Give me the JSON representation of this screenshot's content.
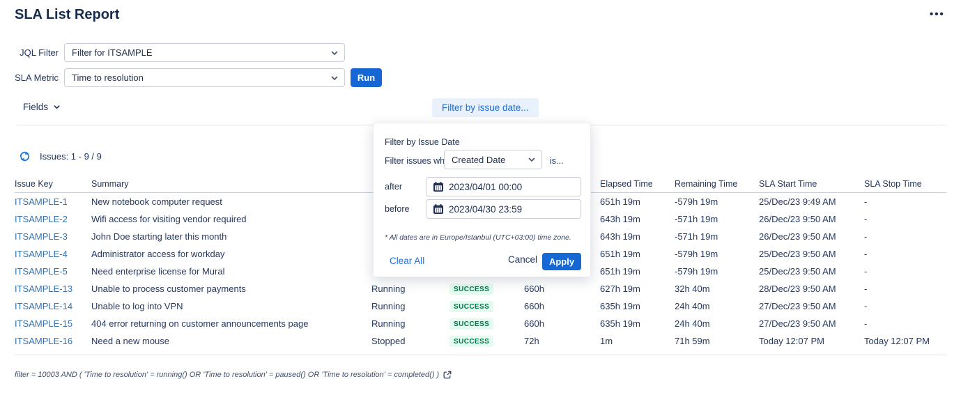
{
  "page": {
    "title": "SLA List Report",
    "menu_icon": "more-options"
  },
  "form": {
    "jql_filter": {
      "label": "JQL Filter",
      "value": "Filter for ITSAMPLE"
    },
    "sla_metric": {
      "label": "SLA Metric",
      "value": "Time to resolution"
    },
    "run_label": "Run",
    "fields_label": "Fields",
    "filter_by_issue_date_label": "Filter by issue date..."
  },
  "issues_bar": {
    "text": "Issues: 1 - 9 / 9"
  },
  "table": {
    "columns": [
      {
        "key": "issue_key",
        "label": "Issue Key"
      },
      {
        "key": "summary",
        "label": "Summary"
      },
      {
        "key": "sla_status",
        "label": ""
      },
      {
        "key": "goal_status",
        "label": ""
      },
      {
        "key": "goal_duration",
        "label": ""
      },
      {
        "key": "elapsed",
        "label": "Elapsed Time"
      },
      {
        "key": "remaining",
        "label": "Remaining Time"
      },
      {
        "key": "start",
        "label": "SLA Start Time"
      },
      {
        "key": "stop",
        "label": "SLA Stop Time"
      }
    ],
    "rows": [
      {
        "issue_key": "ITSAMPLE-1",
        "summary": "New notebook computer request",
        "sla_status": "",
        "goal_status": "",
        "goal_duration": "",
        "elapsed": "651h 19m",
        "remaining": "-579h 19m",
        "start": "25/Dec/23 9:49 AM",
        "stop": "-"
      },
      {
        "issue_key": "ITSAMPLE-2",
        "summary": "Wifi access for visiting vendor required",
        "sla_status": "",
        "goal_status": "",
        "goal_duration": "",
        "elapsed": "643h 19m",
        "remaining": "-571h 19m",
        "start": "26/Dec/23 9:50 AM",
        "stop": "-"
      },
      {
        "issue_key": "ITSAMPLE-3",
        "summary": "John Doe starting later this month",
        "sla_status": "",
        "goal_status": "",
        "goal_duration": "",
        "elapsed": "643h 19m",
        "remaining": "-571h 19m",
        "start": "26/Dec/23 9:50 AM",
        "stop": "-"
      },
      {
        "issue_key": "ITSAMPLE-4",
        "summary": "Administrator access for workday",
        "sla_status": "",
        "goal_status": "",
        "goal_duration": "",
        "elapsed": "651h 19m",
        "remaining": "-579h 19m",
        "start": "25/Dec/23 9:50 AM",
        "stop": "-"
      },
      {
        "issue_key": "ITSAMPLE-5",
        "summary": "Need enterprise license for Mural",
        "sla_status": "",
        "goal_status": "",
        "goal_duration": "",
        "elapsed": "651h 19m",
        "remaining": "-579h 19m",
        "start": "25/Dec/23 9:50 AM",
        "stop": "-"
      },
      {
        "issue_key": "ITSAMPLE-13",
        "summary": "Unable to process customer payments",
        "sla_status": "Running",
        "goal_status": "SUCCESS",
        "goal_duration": "660h",
        "elapsed": "627h 19m",
        "remaining": "32h 40m",
        "start": "28/Dec/23 9:50 AM",
        "stop": "-"
      },
      {
        "issue_key": "ITSAMPLE-14",
        "summary": "Unable to log into VPN",
        "sla_status": "Running",
        "goal_status": "SUCCESS",
        "goal_duration": "660h",
        "elapsed": "635h 19m",
        "remaining": "24h 40m",
        "start": "27/Dec/23 9:50 AM",
        "stop": "-"
      },
      {
        "issue_key": "ITSAMPLE-15",
        "summary": "404 error returning on customer announcements page",
        "sla_status": "Running",
        "goal_status": "SUCCESS",
        "goal_duration": "660h",
        "elapsed": "635h 19m",
        "remaining": "24h 40m",
        "start": "27/Dec/23 9:50 AM",
        "stop": "-"
      },
      {
        "issue_key": "ITSAMPLE-16",
        "summary": "Need a new mouse",
        "sla_status": "Stopped",
        "goal_status": "SUCCESS",
        "goal_duration": "72h",
        "elapsed": "1m",
        "remaining": "71h 59m",
        "start": "Today 12:07 PM",
        "stop": "Today 12:07 PM"
      }
    ]
  },
  "popup": {
    "title": "Filter by Issue Date",
    "where_label": "Filter issues where",
    "field_value": "Created Date",
    "is_label": "is...",
    "after_label": "after",
    "after_value": "2023/04/01 00:00",
    "before_label": "before",
    "before_value": "2023/04/30 23:59",
    "note": "* All dates are in Europe/Istanbul (UTC+03:00) time zone.",
    "clear_all_label": "Clear All",
    "cancel_label": "Cancel",
    "apply_label": "Apply"
  },
  "footer": {
    "filter_text": "filter = 10003 AND ( 'Time to resolution' = running() OR 'Time to resolution' = paused() OR 'Time to resolution' = completed() )"
  },
  "colors": {
    "primary_blue": "#1667d3",
    "link_blue": "#2172dd",
    "issue_link_blue": "#3572b0",
    "success_bg": "#e3fcef",
    "success_text": "#00744a"
  }
}
